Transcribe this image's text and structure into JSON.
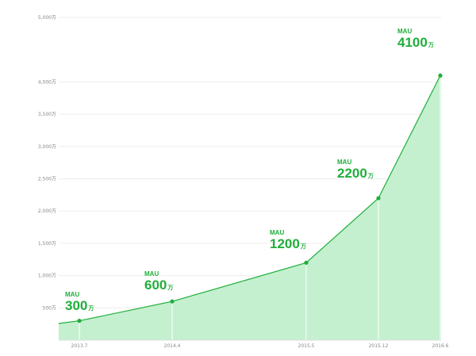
{
  "chart_data": {
    "type": "area",
    "title": "",
    "xlabel": "",
    "ylabel": "",
    "ylim": [
      0,
      5000
    ],
    "yticks": [
      "500万",
      "1,000万",
      "1,500万",
      "2,000万",
      "2,500万",
      "3,000万",
      "3,500万",
      "4,000万",
      "5,000万"
    ],
    "ytick_values": [
      500,
      1000,
      1500,
      2000,
      2500,
      3000,
      3500,
      4000,
      5000
    ],
    "categories": [
      "2013.7",
      "2014.4",
      "2015.5",
      "2015.12",
      "2016.6"
    ],
    "series": [
      {
        "values": [
          300,
          600,
          1200,
          2200,
          4100
        ]
      }
    ],
    "annotations": [
      {
        "label": "MAU",
        "value": "300",
        "unit": "万"
      },
      {
        "label": "MAU",
        "value": "600",
        "unit": "万"
      },
      {
        "label": "MAU",
        "value": "1200",
        "unit": "万"
      },
      {
        "label": "MAU",
        "value": "2200",
        "unit": "万"
      },
      {
        "label": "MAU",
        "value": "4100",
        "unit": "万"
      }
    ],
    "grid": true,
    "legend": "none",
    "colors": {
      "line": "#1fae3a",
      "fill": "#c4f0cf",
      "text": "#1fae3a",
      "grid": "#eeeeee",
      "axis_text": "#888888"
    }
  }
}
